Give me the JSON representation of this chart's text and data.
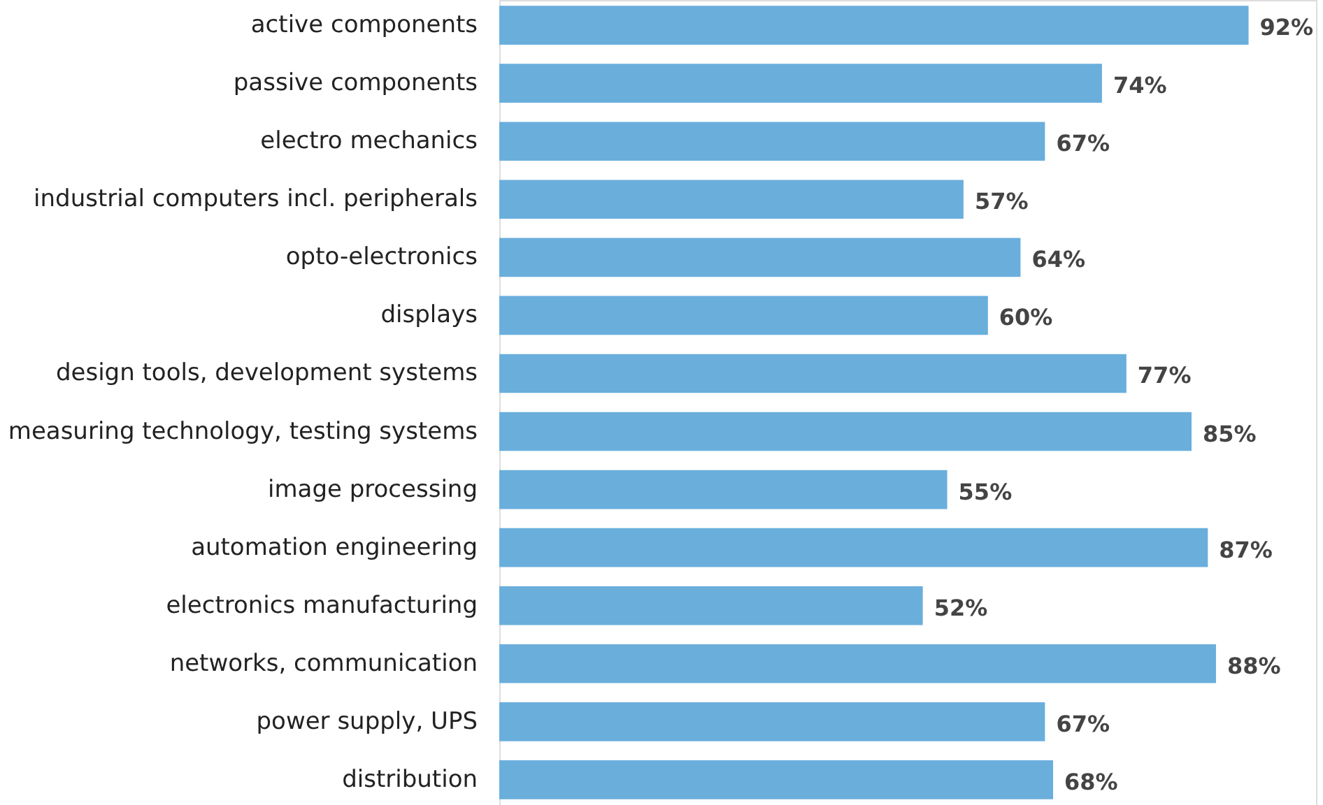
{
  "chart_data": {
    "type": "bar",
    "orientation": "horizontal",
    "categories": [
      "active components",
      "passive components",
      "electro mechanics",
      "industrial computers incl. peripherals",
      "opto-electronics",
      "displays",
      "design tools, development systems",
      "measuring technology, testing systems",
      "image processing",
      "automation engineering",
      "electronics manufacturing",
      "networks, communication",
      "power supply, UPS",
      "distribution"
    ],
    "values": [
      92,
      74,
      67,
      57,
      64,
      60,
      77,
      85,
      55,
      87,
      52,
      88,
      67,
      68
    ],
    "value_labels": [
      "92%",
      "74%",
      "67%",
      "57%",
      "64%",
      "60%",
      "77%",
      "85%",
      "55%",
      "87%",
      "52%",
      "88%",
      "67%",
      "68%"
    ],
    "color": "#6aaedc",
    "grid": false
  }
}
